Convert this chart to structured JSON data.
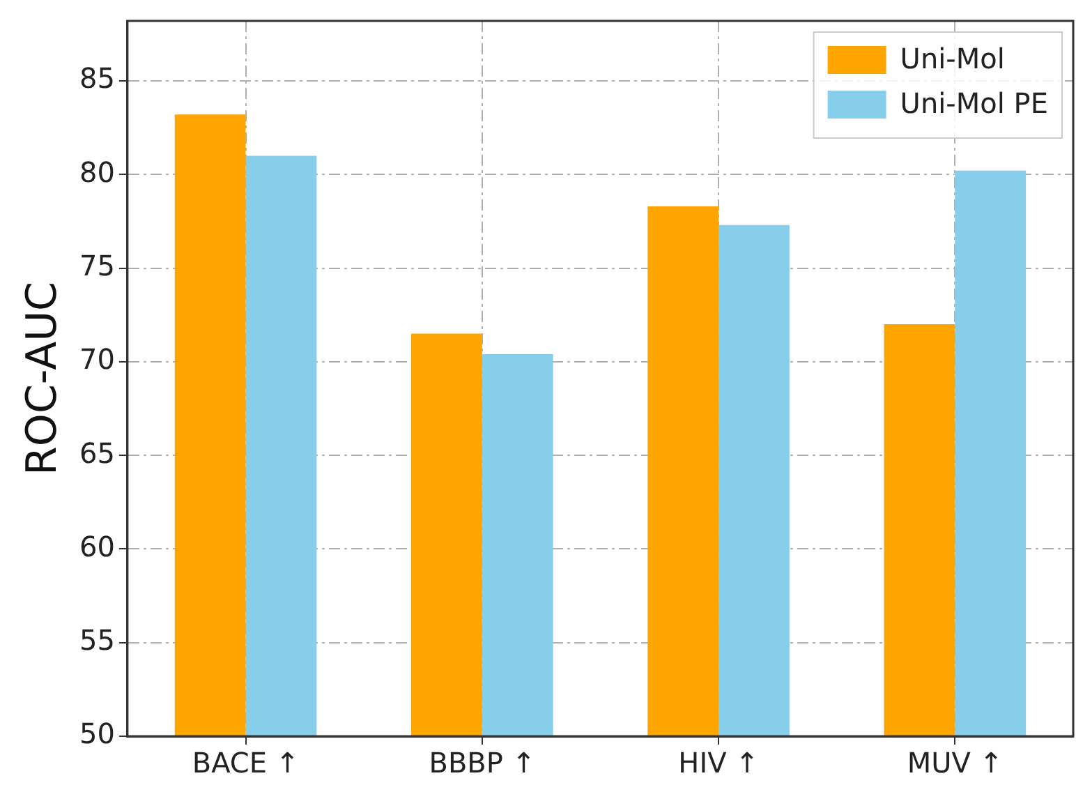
{
  "chart_data": {
    "type": "bar",
    "ylabel": "ROC-AUC",
    "categories": [
      "BACE ↑",
      "BBBP ↑",
      "HIV ↑",
      "MUV ↑"
    ],
    "series": [
      {
        "name": "Uni-Mol",
        "color": "#ffa500",
        "values": [
          83.2,
          71.5,
          78.3,
          72.0
        ]
      },
      {
        "name": "Uni-Mol PE",
        "color": "#87ceeb",
        "values": [
          81.0,
          70.4,
          77.3,
          80.2
        ]
      }
    ],
    "ylim": [
      50,
      88.2
    ],
    "yticks": [
      50,
      55,
      60,
      65,
      70,
      75,
      80,
      85
    ],
    "grid": true,
    "legend": "top right"
  }
}
